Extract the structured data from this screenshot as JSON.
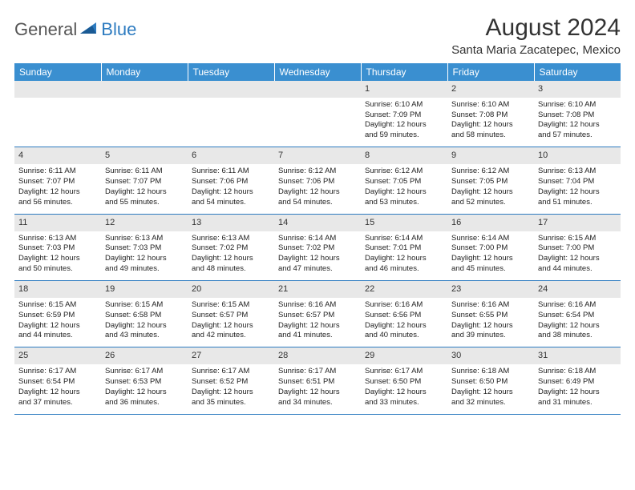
{
  "logo": {
    "word1": "General",
    "word2": "Blue"
  },
  "title": "August 2024",
  "location": "Santa Maria Zacatepec, Mexico",
  "colors": {
    "header_bg": "#3a8fd0",
    "rule": "#2d7bc0",
    "daynum_bg": "#e8e8e8"
  },
  "daynames": [
    "Sunday",
    "Monday",
    "Tuesday",
    "Wednesday",
    "Thursday",
    "Friday",
    "Saturday"
  ],
  "weeks": [
    [
      null,
      null,
      null,
      null,
      {
        "n": "1",
        "sr": "Sunrise: 6:10 AM",
        "ss": "Sunset: 7:09 PM",
        "d1": "Daylight: 12 hours",
        "d2": "and 59 minutes."
      },
      {
        "n": "2",
        "sr": "Sunrise: 6:10 AM",
        "ss": "Sunset: 7:08 PM",
        "d1": "Daylight: 12 hours",
        "d2": "and 58 minutes."
      },
      {
        "n": "3",
        "sr": "Sunrise: 6:10 AM",
        "ss": "Sunset: 7:08 PM",
        "d1": "Daylight: 12 hours",
        "d2": "and 57 minutes."
      }
    ],
    [
      {
        "n": "4",
        "sr": "Sunrise: 6:11 AM",
        "ss": "Sunset: 7:07 PM",
        "d1": "Daylight: 12 hours",
        "d2": "and 56 minutes."
      },
      {
        "n": "5",
        "sr": "Sunrise: 6:11 AM",
        "ss": "Sunset: 7:07 PM",
        "d1": "Daylight: 12 hours",
        "d2": "and 55 minutes."
      },
      {
        "n": "6",
        "sr": "Sunrise: 6:11 AM",
        "ss": "Sunset: 7:06 PM",
        "d1": "Daylight: 12 hours",
        "d2": "and 54 minutes."
      },
      {
        "n": "7",
        "sr": "Sunrise: 6:12 AM",
        "ss": "Sunset: 7:06 PM",
        "d1": "Daylight: 12 hours",
        "d2": "and 54 minutes."
      },
      {
        "n": "8",
        "sr": "Sunrise: 6:12 AM",
        "ss": "Sunset: 7:05 PM",
        "d1": "Daylight: 12 hours",
        "d2": "and 53 minutes."
      },
      {
        "n": "9",
        "sr": "Sunrise: 6:12 AM",
        "ss": "Sunset: 7:05 PM",
        "d1": "Daylight: 12 hours",
        "d2": "and 52 minutes."
      },
      {
        "n": "10",
        "sr": "Sunrise: 6:13 AM",
        "ss": "Sunset: 7:04 PM",
        "d1": "Daylight: 12 hours",
        "d2": "and 51 minutes."
      }
    ],
    [
      {
        "n": "11",
        "sr": "Sunrise: 6:13 AM",
        "ss": "Sunset: 7:03 PM",
        "d1": "Daylight: 12 hours",
        "d2": "and 50 minutes."
      },
      {
        "n": "12",
        "sr": "Sunrise: 6:13 AM",
        "ss": "Sunset: 7:03 PM",
        "d1": "Daylight: 12 hours",
        "d2": "and 49 minutes."
      },
      {
        "n": "13",
        "sr": "Sunrise: 6:13 AM",
        "ss": "Sunset: 7:02 PM",
        "d1": "Daylight: 12 hours",
        "d2": "and 48 minutes."
      },
      {
        "n": "14",
        "sr": "Sunrise: 6:14 AM",
        "ss": "Sunset: 7:02 PM",
        "d1": "Daylight: 12 hours",
        "d2": "and 47 minutes."
      },
      {
        "n": "15",
        "sr": "Sunrise: 6:14 AM",
        "ss": "Sunset: 7:01 PM",
        "d1": "Daylight: 12 hours",
        "d2": "and 46 minutes."
      },
      {
        "n": "16",
        "sr": "Sunrise: 6:14 AM",
        "ss": "Sunset: 7:00 PM",
        "d1": "Daylight: 12 hours",
        "d2": "and 45 minutes."
      },
      {
        "n": "17",
        "sr": "Sunrise: 6:15 AM",
        "ss": "Sunset: 7:00 PM",
        "d1": "Daylight: 12 hours",
        "d2": "and 44 minutes."
      }
    ],
    [
      {
        "n": "18",
        "sr": "Sunrise: 6:15 AM",
        "ss": "Sunset: 6:59 PM",
        "d1": "Daylight: 12 hours",
        "d2": "and 44 minutes."
      },
      {
        "n": "19",
        "sr": "Sunrise: 6:15 AM",
        "ss": "Sunset: 6:58 PM",
        "d1": "Daylight: 12 hours",
        "d2": "and 43 minutes."
      },
      {
        "n": "20",
        "sr": "Sunrise: 6:15 AM",
        "ss": "Sunset: 6:57 PM",
        "d1": "Daylight: 12 hours",
        "d2": "and 42 minutes."
      },
      {
        "n": "21",
        "sr": "Sunrise: 6:16 AM",
        "ss": "Sunset: 6:57 PM",
        "d1": "Daylight: 12 hours",
        "d2": "and 41 minutes."
      },
      {
        "n": "22",
        "sr": "Sunrise: 6:16 AM",
        "ss": "Sunset: 6:56 PM",
        "d1": "Daylight: 12 hours",
        "d2": "and 40 minutes."
      },
      {
        "n": "23",
        "sr": "Sunrise: 6:16 AM",
        "ss": "Sunset: 6:55 PM",
        "d1": "Daylight: 12 hours",
        "d2": "and 39 minutes."
      },
      {
        "n": "24",
        "sr": "Sunrise: 6:16 AM",
        "ss": "Sunset: 6:54 PM",
        "d1": "Daylight: 12 hours",
        "d2": "and 38 minutes."
      }
    ],
    [
      {
        "n": "25",
        "sr": "Sunrise: 6:17 AM",
        "ss": "Sunset: 6:54 PM",
        "d1": "Daylight: 12 hours",
        "d2": "and 37 minutes."
      },
      {
        "n": "26",
        "sr": "Sunrise: 6:17 AM",
        "ss": "Sunset: 6:53 PM",
        "d1": "Daylight: 12 hours",
        "d2": "and 36 minutes."
      },
      {
        "n": "27",
        "sr": "Sunrise: 6:17 AM",
        "ss": "Sunset: 6:52 PM",
        "d1": "Daylight: 12 hours",
        "d2": "and 35 minutes."
      },
      {
        "n": "28",
        "sr": "Sunrise: 6:17 AM",
        "ss": "Sunset: 6:51 PM",
        "d1": "Daylight: 12 hours",
        "d2": "and 34 minutes."
      },
      {
        "n": "29",
        "sr": "Sunrise: 6:17 AM",
        "ss": "Sunset: 6:50 PM",
        "d1": "Daylight: 12 hours",
        "d2": "and 33 minutes."
      },
      {
        "n": "30",
        "sr": "Sunrise: 6:18 AM",
        "ss": "Sunset: 6:50 PM",
        "d1": "Daylight: 12 hours",
        "d2": "and 32 minutes."
      },
      {
        "n": "31",
        "sr": "Sunrise: 6:18 AM",
        "ss": "Sunset: 6:49 PM",
        "d1": "Daylight: 12 hours",
        "d2": "and 31 minutes."
      }
    ]
  ]
}
